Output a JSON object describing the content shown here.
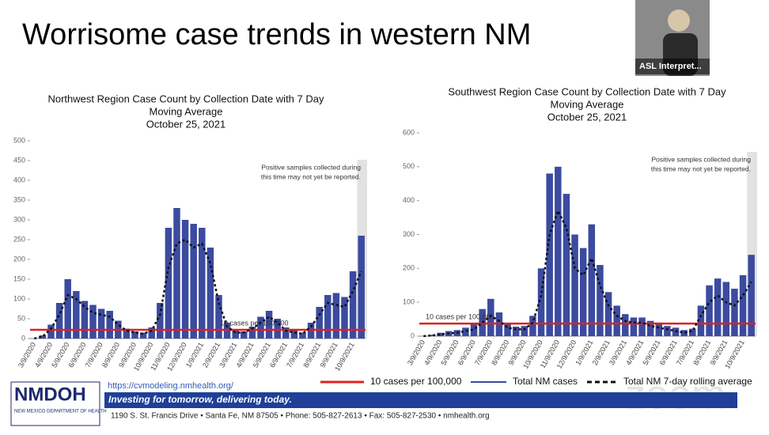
{
  "header": {
    "title": "Worrisome case trends in western NM"
  },
  "video": {
    "label": "ASL Interpret..."
  },
  "chart_data": [
    {
      "type": "bar",
      "title": [
        "Northwest Region Case Count by Collection Date with 7 Day",
        "Moving Average",
        "October 25, 2021"
      ],
      "categories": [
        "3/9/2020",
        null,
        "4/9/2020",
        null,
        "5/9/2020",
        null,
        "6/9/2020",
        null,
        "7/9/2020",
        null,
        "8/9/2020",
        null,
        "9/9/2020",
        null,
        "10/9/2020",
        null,
        "11/9/2020",
        null,
        "12/9/2020",
        null,
        "1/9/2021",
        null,
        "2/9/2021",
        null,
        "3/9/2021",
        null,
        "4/9/2021",
        null,
        "5/9/2021",
        null,
        "6/9/2021",
        null,
        "7/9/2021",
        null,
        "8/9/2021",
        null,
        "9/9/2021",
        null,
        "10/9/2021",
        null
      ],
      "series": [
        {
          "type": "bar",
          "color": "#3b4ba0",
          "values": [
            0,
            8,
            35,
            90,
            150,
            120,
            95,
            85,
            75,
            70,
            45,
            25,
            18,
            15,
            28,
            90,
            280,
            330,
            300,
            290,
            280,
            230,
            110,
            40,
            20,
            18,
            30,
            55,
            70,
            50,
            28,
            20,
            15,
            40,
            80,
            110,
            115,
            105,
            170,
            260
          ]
        },
        {
          "type": "line",
          "color": "#111111",
          "values": [
            0,
            5,
            25,
            60,
            110,
            100,
            80,
            65,
            60,
            55,
            35,
            20,
            15,
            12,
            20,
            60,
            180,
            240,
            250,
            230,
            240,
            190,
            90,
            30,
            15,
            15,
            25,
            40,
            55,
            40,
            20,
            15,
            12,
            30,
            60,
            90,
            85,
            80,
            120,
            170
          ]
        }
      ],
      "reference": {
        "value": 22,
        "color": "#e02020"
      },
      "reference_label": "10 cases per 100,000",
      "note": [
        "Positive samples collected during",
        "this time may not yet be reported."
      ],
      "ylim": [
        0,
        500
      ],
      "yticks": [
        0,
        50,
        100,
        150,
        200,
        250,
        300,
        350,
        400,
        450,
        500
      ]
    },
    {
      "type": "bar",
      "title": [
        "Southwest Region Case Count by Collection Date with 7 Day",
        "Moving Average",
        "October 25, 2021"
      ],
      "categories": [
        "3/9/2020",
        null,
        "4/9/2020",
        null,
        "5/9/2020",
        null,
        "6/9/2020",
        null,
        "7/9/2020",
        null,
        "8/9/2020",
        null,
        "9/9/2020",
        null,
        "10/9/2020",
        null,
        "11/9/2020",
        null,
        "12/9/2020",
        null,
        "1/9/2021",
        null,
        "2/9/2021",
        null,
        "3/9/2021",
        null,
        "4/9/2021",
        null,
        "5/9/2021",
        null,
        "6/9/2021",
        null,
        "7/9/2021",
        null,
        "8/9/2021",
        null,
        "9/9/2021",
        null,
        "10/9/2021",
        null
      ],
      "series": [
        {
          "type": "bar",
          "color": "#3b4ba0",
          "values": [
            0,
            4,
            10,
            15,
            18,
            25,
            35,
            80,
            110,
            70,
            35,
            28,
            30,
            60,
            200,
            480,
            500,
            420,
            300,
            260,
            330,
            210,
            130,
            90,
            65,
            55,
            55,
            45,
            40,
            30,
            25,
            18,
            22,
            90,
            150,
            170,
            160,
            140,
            180,
            240
          ]
        },
        {
          "type": "line",
          "color": "#111111",
          "values": [
            0,
            2,
            5,
            8,
            10,
            15,
            20,
            40,
            60,
            45,
            25,
            20,
            20,
            40,
            120,
            300,
            370,
            320,
            200,
            180,
            230,
            150,
            90,
            60,
            45,
            40,
            40,
            30,
            25,
            20,
            15,
            10,
            15,
            60,
            100,
            120,
            100,
            90,
            120,
            160
          ]
        }
      ],
      "reference": {
        "value": 37,
        "color": "#e02020"
      },
      "reference_label": "10 cases per 100,000",
      "note": [
        "Positive samples collected during",
        "this time may not yet be reported."
      ],
      "ylim": [
        0,
        600
      ],
      "yticks": [
        0,
        100,
        200,
        300,
        400,
        500,
        600
      ]
    }
  ],
  "legend": [
    {
      "label": "10 cases per 100,000",
      "color": "#e02020"
    },
    {
      "label": "Total NM cases",
      "color": "#3b4ba0"
    },
    {
      "label": "Total NM 7-day rolling average",
      "color": "#111111"
    }
  ],
  "footer": {
    "logo": "NMDOH",
    "logo_sub": "NEW MEXICO DEPARTMENT OF HEALTH",
    "url": "https://cvmodeling.nmhealth.org/",
    "banner": "Investing for tomorrow, delivering today.",
    "address": "1190 S. St. Francis Drive • Santa Fe, NM 87505 • Phone: 505-827-2613 • Fax: 505-827-2530 • nmhealth.org"
  },
  "watermark": "zoom"
}
